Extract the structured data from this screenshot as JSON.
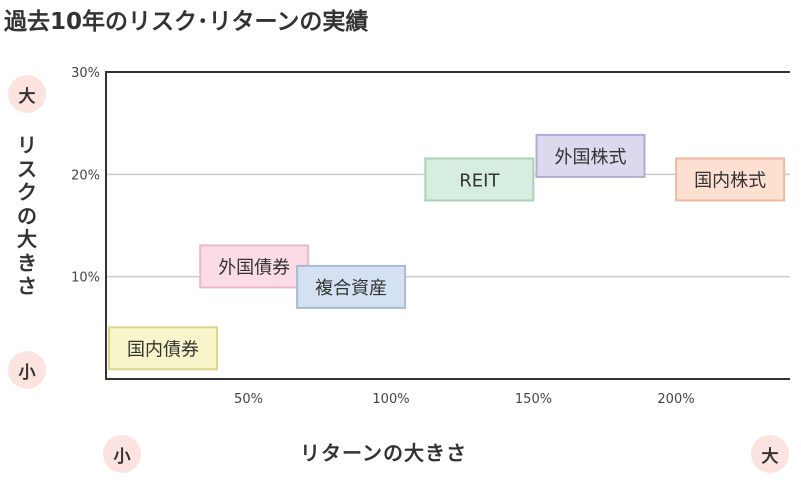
{
  "title": "過去10年のリスク･リターンの実績",
  "y_axis": {
    "label": "リスクの大きさ",
    "high": "大",
    "low": "小"
  },
  "x_axis": {
    "label": "リターンの大きさ",
    "low": "小",
    "high": "大"
  },
  "colors": {
    "circle": "#fde3df",
    "grid": "#cccccc",
    "axis": "#333333"
  },
  "chart_data": {
    "type": "scatter",
    "xlabel": "リターンの大きさ",
    "ylabel": "リスクの大きさ",
    "xlim": [
      0,
      240
    ],
    "ylim": [
      0,
      30
    ],
    "x_ticks": [
      50,
      100,
      150,
      200
    ],
    "x_tick_labels": [
      "50%",
      "100%",
      "150%",
      "200%"
    ],
    "y_ticks": [
      10,
      20,
      30
    ],
    "y_tick_labels": [
      "10%",
      "20%",
      "30%"
    ],
    "grid": "horizontal",
    "points": [
      {
        "label": "国内債券",
        "x": 20,
        "y": 3,
        "fill": "#f7f5c9",
        "stroke": "#d9d68c"
      },
      {
        "label": "外国債券",
        "x": 52,
        "y": 11,
        "fill": "#fbdce6",
        "stroke": "#eeb6c9"
      },
      {
        "label": "複合資産",
        "x": 86,
        "y": 9,
        "fill": "#d3e1f2",
        "stroke": "#a7bad2"
      },
      {
        "label": "REIT",
        "x": 131,
        "y": 19.5,
        "fill": "#d6eedf",
        "stroke": "#a9d2b6"
      },
      {
        "label": "外国株式",
        "x": 170,
        "y": 21.8,
        "fill": "#dcd8ee",
        "stroke": "#b3abd6"
      },
      {
        "label": "国内株式",
        "x": 219,
        "y": 19.5,
        "fill": "#fde0d2",
        "stroke": "#f0b89d"
      }
    ]
  }
}
